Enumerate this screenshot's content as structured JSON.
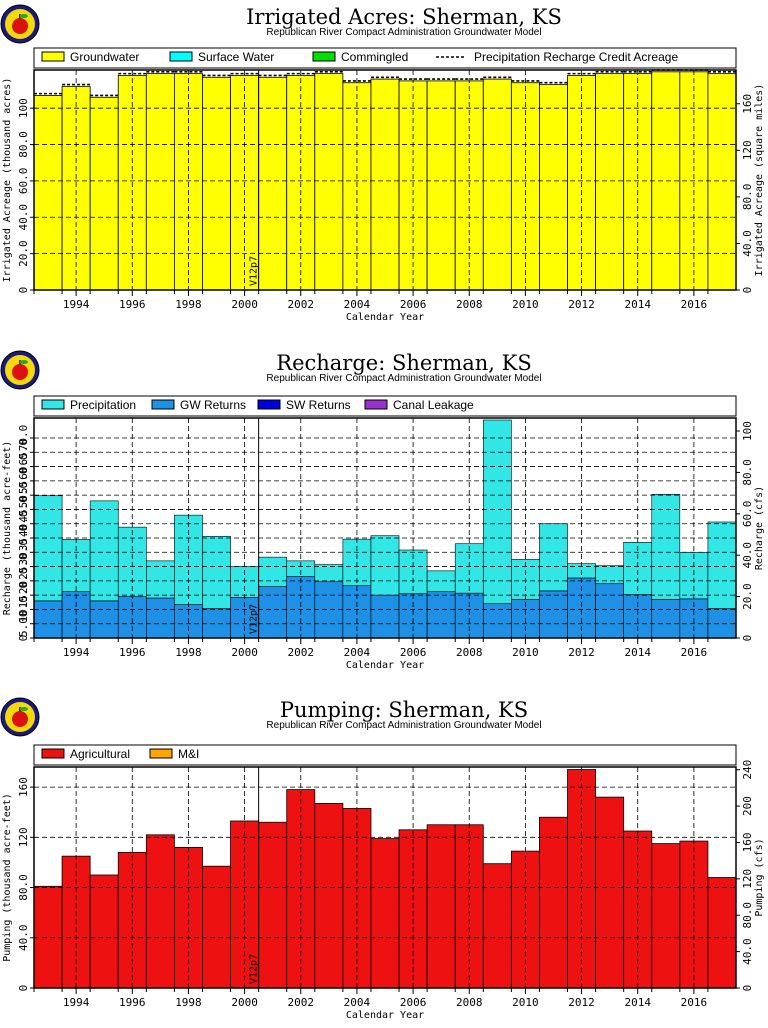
{
  "logo_icon": "kansas-apple-seal-icon",
  "colors": {
    "groundwater": "#ffff00",
    "surface_water": "#00ffff",
    "commingled": "#00e000",
    "precipitation": "#33e6e6",
    "gw_returns": "#1e90e6",
    "sw_returns": "#0000dd",
    "canal_leakage": "#9932cc",
    "agricultural": "#ee1111",
    "mi": "#ffa500"
  },
  "chart_data": [
    {
      "type": "bar",
      "title": "Irrigated Acres: Sherman, KS",
      "subtitle": "Republican River Compact Administration Groundwater Model",
      "xlabel": "Calendar Year",
      "ylabel": "Irrigated Acreage (thousand acres)",
      "y2label": "Irrigated Acreage (square miles)",
      "marker_label": "V12p7",
      "marker_x": 2000.5,
      "x": [
        1993,
        1994,
        1995,
        1996,
        1997,
        1998,
        1999,
        2000,
        2001,
        2002,
        2003,
        2004,
        2005,
        2006,
        2007,
        2008,
        2009,
        2010,
        2011,
        2012,
        2013,
        2014,
        2015,
        2016,
        2017
      ],
      "xlim": [
        1992.5,
        2017.5
      ],
      "ylim": [
        0,
        121
      ],
      "y2lim": [
        0,
        189
      ],
      "x_ticks": [
        1994,
        1996,
        1998,
        2000,
        2002,
        2004,
        2006,
        2008,
        2010,
        2012,
        2014,
        2016
      ],
      "x_tick_labels": [
        "1994",
        "1996",
        "1998",
        "2000",
        "2002",
        "2004",
        "2006",
        "2008",
        "2010",
        "2012",
        "2014",
        "2016"
      ],
      "y_ticks": [
        0,
        20,
        40,
        60,
        80,
        100
      ],
      "y_tick_labels": [
        "0",
        "20.0",
        "40.0",
        "60.0",
        "80.0",
        "100"
      ],
      "y2_ticks": [
        0,
        40,
        80,
        120,
        160
      ],
      "y2_tick_labels": [
        "0",
        "40.0",
        "80.0",
        "120",
        "160"
      ],
      "series": [
        {
          "name": "Groundwater",
          "values": [
            107,
            112,
            106,
            118,
            119,
            119,
            117,
            118,
            117,
            118,
            119,
            114,
            116,
            115,
            115,
            115,
            116,
            114,
            113,
            118,
            119,
            119,
            120,
            120,
            119
          ]
        },
        {
          "name": "Surface Water",
          "values": [
            0,
            0,
            0,
            0,
            0,
            0,
            0,
            0,
            0,
            0,
            0,
            0,
            0,
            0,
            0,
            0,
            0,
            0,
            0,
            0,
            0,
            0,
            0,
            0,
            0
          ]
        },
        {
          "name": "Commingled",
          "values": [
            0,
            0,
            0,
            0,
            0,
            0,
            0,
            0,
            0,
            0,
            0,
            0,
            0,
            0,
            0,
            0,
            0,
            0,
            0,
            0,
            0,
            0,
            0,
            0,
            0
          ]
        },
        {
          "name": "Precipitation Recharge Credit Acreage",
          "values": [
            108,
            113,
            107,
            119,
            120,
            120,
            118,
            119,
            118,
            119,
            120,
            115,
            117,
            116,
            116,
            116,
            117,
            115,
            114,
            119,
            120,
            120,
            121,
            121,
            120
          ]
        }
      ],
      "grid": true,
      "legend": "top"
    },
    {
      "type": "bar",
      "title": "Recharge: Sherman, KS",
      "subtitle": "Republican River Compact Administration Groundwater Model",
      "xlabel": "Calendar Year",
      "ylabel": "Recharge (thousand acre-feet)",
      "y2label": "Recharge (cfs)",
      "marker_label": "V12p7",
      "marker_x": 2000.5,
      "x": [
        1993,
        1994,
        1995,
        1996,
        1997,
        1998,
        1999,
        2000,
        2001,
        2002,
        2003,
        2004,
        2005,
        2006,
        2007,
        2008,
        2009,
        2010,
        2011,
        2012,
        2013,
        2014,
        2015,
        2016,
        2017
      ],
      "xlim": [
        1992.5,
        2017.5
      ],
      "ylim": [
        0,
        77
      ],
      "y2lim": [
        0,
        106.3
      ],
      "x_ticks": [
        1994,
        1996,
        1998,
        2000,
        2002,
        2004,
        2006,
        2008,
        2010,
        2012,
        2014,
        2016
      ],
      "x_tick_labels": [
        "1994",
        "1996",
        "1998",
        "2000",
        "2002",
        "2004",
        "2006",
        "2008",
        "2010",
        "2012",
        "2014",
        "2016"
      ],
      "y_ticks": [
        0,
        5,
        10,
        15,
        20,
        25,
        30,
        35,
        40,
        45,
        50,
        55,
        60,
        65,
        70
      ],
      "y_tick_labels": [
        "0",
        "5.00",
        "10.0",
        "15.0",
        "20.0",
        "25.0",
        "30.0",
        "35.0",
        "40.0",
        "45.0",
        "50.0",
        "55.0",
        "60.0",
        "65.0",
        "70.0"
      ],
      "y2_ticks": [
        0,
        20,
        40,
        60,
        80,
        100
      ],
      "y2_tick_labels": [
        "0",
        "20.0",
        "40.0",
        "60.0",
        "80.0",
        "100"
      ],
      "series": [
        {
          "name": "Precipitation",
          "values": [
            36.8,
            18.3,
            35.0,
            24.3,
            13.0,
            31.3,
            25.3,
            10.8,
            10.3,
            5.5,
            6.0,
            16.3,
            20.8,
            15.3,
            7.3,
            17.3,
            64.3,
            14.0,
            23.5,
            5.0,
            6.3,
            18.3,
            36.8,
            16.3,
            30.3
          ]
        },
        {
          "name": "GW Returns",
          "values": [
            13.0,
            16.2,
            13.0,
            14.5,
            14.0,
            11.7,
            10.3,
            14.2,
            18.0,
            21.5,
            19.7,
            18.3,
            15.0,
            15.5,
            16.2,
            15.7,
            12.0,
            13.5,
            16.5,
            21.0,
            19.0,
            15.2,
            13.5,
            13.7,
            10.3
          ]
        },
        {
          "name": "SW Returns",
          "values": [
            0,
            0,
            0,
            0,
            0,
            0,
            0,
            0,
            0,
            0,
            0,
            0,
            0,
            0,
            0,
            0,
            0,
            0,
            0,
            0,
            0,
            0,
            0,
            0,
            0
          ]
        },
        {
          "name": "Canal Leakage",
          "values": [
            0,
            0,
            0,
            0,
            0,
            0,
            0,
            0,
            0,
            0,
            0,
            0,
            0,
            0,
            0,
            0,
            0,
            0,
            0,
            0,
            0,
            0,
            0,
            0,
            0
          ]
        }
      ],
      "grid": true,
      "legend": "top"
    },
    {
      "type": "bar",
      "title": "Pumping: Sherman, KS",
      "subtitle": "Republican River Compact Administration Groundwater Model",
      "xlabel": "Calendar Year",
      "ylabel": "Pumping (thousand acre-feet)",
      "y2label": "Pumping (cfs)",
      "marker_label": "V12p7",
      "marker_x": 2000.5,
      "x": [
        1993,
        1994,
        1995,
        1996,
        1997,
        1998,
        1999,
        2000,
        2001,
        2002,
        2003,
        2004,
        2005,
        2006,
        2007,
        2008,
        2009,
        2010,
        2011,
        2012,
        2013,
        2014,
        2015,
        2016,
        2017
      ],
      "xlim": [
        1992.5,
        2017.5
      ],
      "ylim": [
        0,
        176
      ],
      "y2lim": [
        0,
        243
      ],
      "x_ticks": [
        1994,
        1996,
        1998,
        2000,
        2002,
        2004,
        2006,
        2008,
        2010,
        2012,
        2014,
        2016
      ],
      "x_tick_labels": [
        "1994",
        "1996",
        "1998",
        "2000",
        "2002",
        "2004",
        "2006",
        "2008",
        "2010",
        "2012",
        "2014",
        "2016"
      ],
      "y_ticks": [
        0,
        40,
        80,
        120,
        160
      ],
      "y_tick_labels": [
        "0",
        "40.0",
        "80.0",
        "120",
        "160"
      ],
      "y2_ticks": [
        0,
        40,
        80,
        120,
        160,
        200,
        240
      ],
      "y2_tick_labels": [
        "0",
        "40.0",
        "80.0",
        "120",
        "160",
        "200",
        "240"
      ],
      "series": [
        {
          "name": "Agricultural",
          "values": [
            81,
            105,
            90,
            108,
            122,
            112,
            97,
            133,
            132,
            158,
            147,
            143,
            119,
            126,
            130,
            130,
            99,
            109,
            136,
            174,
            152,
            125,
            115,
            117,
            88
          ]
        },
        {
          "name": "M&I",
          "values": [
            0,
            0,
            0,
            0,
            0,
            0,
            0,
            0,
            0,
            0,
            0,
            0,
            0,
            0,
            0,
            0,
            0,
            0,
            0,
            0,
            0,
            0,
            0,
            0,
            0
          ]
        }
      ],
      "grid": true,
      "legend": "top"
    }
  ]
}
